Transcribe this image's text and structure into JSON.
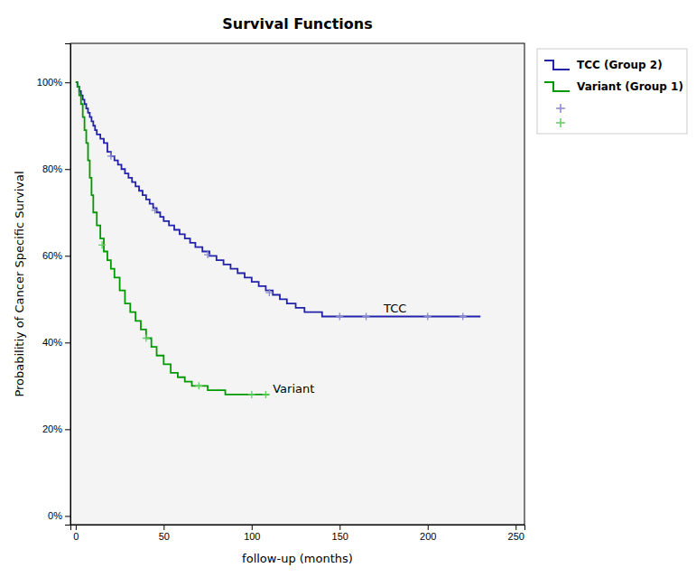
{
  "chart_data": {
    "type": "step",
    "title": "Survival Functions",
    "x_label": "follow-up (months)",
    "y_label": "Probabilitiy of Cancer Specific Survival",
    "xlim": [
      -3,
      255
    ],
    "ylim": [
      -0.02,
      1.09
    ],
    "xticks": [
      0,
      50,
      100,
      150,
      200,
      250
    ],
    "yticks": [
      {
        "value": 0.0,
        "label": "0%"
      },
      {
        "value": 0.2,
        "label": "20%"
      },
      {
        "value": 0.4,
        "label": "40%"
      },
      {
        "value": 0.6,
        "label": "60%"
      },
      {
        "value": 0.8,
        "label": "80%"
      },
      {
        "value": 1.0,
        "label": "100%"
      }
    ],
    "grid": false,
    "legend": "right",
    "series": [
      {
        "name": "TCC (Group 2)",
        "type": "step",
        "color": "#2222aa",
        "x": [
          0,
          1,
          2,
          3,
          4,
          5,
          6,
          7,
          8,
          9,
          10,
          11,
          12,
          14,
          16,
          18,
          20,
          22,
          24,
          26,
          28,
          30,
          32,
          34,
          36,
          38,
          40,
          42,
          44,
          46,
          48,
          50,
          53,
          56,
          59,
          62,
          65,
          68,
          72,
          76,
          80,
          84,
          88,
          92,
          96,
          100,
          104,
          108,
          112,
          116,
          120,
          125,
          130,
          140,
          155,
          230
        ],
        "values": [
          1.0,
          0.99,
          0.98,
          0.97,
          0.96,
          0.95,
          0.94,
          0.93,
          0.92,
          0.91,
          0.9,
          0.89,
          0.88,
          0.87,
          0.86,
          0.84,
          0.83,
          0.82,
          0.81,
          0.8,
          0.79,
          0.78,
          0.77,
          0.76,
          0.75,
          0.74,
          0.73,
          0.72,
          0.71,
          0.7,
          0.69,
          0.68,
          0.67,
          0.66,
          0.65,
          0.64,
          0.63,
          0.62,
          0.61,
          0.6,
          0.59,
          0.58,
          0.57,
          0.56,
          0.55,
          0.54,
          0.53,
          0.52,
          0.51,
          0.5,
          0.49,
          0.48,
          0.47,
          0.46,
          0.46,
          0.46
        ]
      },
      {
        "name": "Variant (Group 1)",
        "type": "step",
        "color": "#009900",
        "x": [
          0,
          1,
          2,
          3,
          4,
          5,
          6,
          7,
          8,
          9,
          10,
          12,
          14,
          16,
          18,
          20,
          22,
          25,
          28,
          31,
          34,
          37,
          40,
          43,
          46,
          50,
          54,
          58,
          62,
          66,
          70,
          75,
          80,
          85,
          90,
          95,
          100,
          105,
          110
        ],
        "values": [
          1.0,
          0.99,
          0.97,
          0.95,
          0.92,
          0.89,
          0.86,
          0.82,
          0.78,
          0.74,
          0.7,
          0.67,
          0.64,
          0.61,
          0.59,
          0.57,
          0.55,
          0.52,
          0.49,
          0.47,
          0.45,
          0.43,
          0.41,
          0.39,
          0.37,
          0.35,
          0.33,
          0.32,
          0.31,
          0.3,
          0.3,
          0.29,
          0.29,
          0.28,
          0.28,
          0.28,
          0.28,
          0.28,
          0.28
        ]
      },
      {
        "type": "scatter",
        "marker": "plus",
        "color": "#8888cc",
        "x": [
          20,
          45,
          75,
          110,
          150,
          165,
          200,
          220
        ],
        "values": [
          0.83,
          0.705,
          0.6025,
          0.515,
          0.46,
          0.46,
          0.46,
          0.46
        ]
      },
      {
        "type": "scatter",
        "marker": "plus",
        "color": "#66cc66",
        "x": [
          15,
          40,
          70,
          100,
          108
        ],
        "values": [
          0.625,
          0.41,
          0.3,
          0.28,
          0.28
        ]
      }
    ],
    "annotations": [
      {
        "text": "TCC",
        "x": 175,
        "y": 0.47
      },
      {
        "text": "Variant",
        "x": 112,
        "y": 0.285
      }
    ]
  }
}
